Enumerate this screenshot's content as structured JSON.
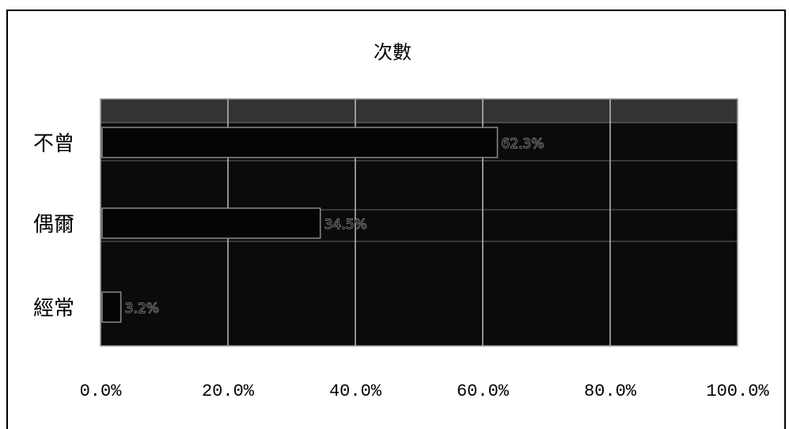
{
  "chart_data": {
    "type": "bar",
    "orientation": "horizontal",
    "title": "次數",
    "categories": [
      "不曾",
      "偶爾",
      "經常"
    ],
    "values": [
      62.3,
      34.5,
      3.2
    ],
    "data_labels": [
      "62.3%",
      "34.5%",
      "3.2%"
    ],
    "x_ticks": [
      "0.0%",
      "20.0%",
      "40.0%",
      "60.0%",
      "80.0%",
      "100.0%"
    ],
    "xlim": [
      0,
      100
    ],
    "grid": true,
    "legend": "none",
    "colors": {
      "plot_area": "#0b0b0b",
      "bar": "#050505",
      "gridline": "#bdbdbd",
      "band": "#555555"
    }
  }
}
